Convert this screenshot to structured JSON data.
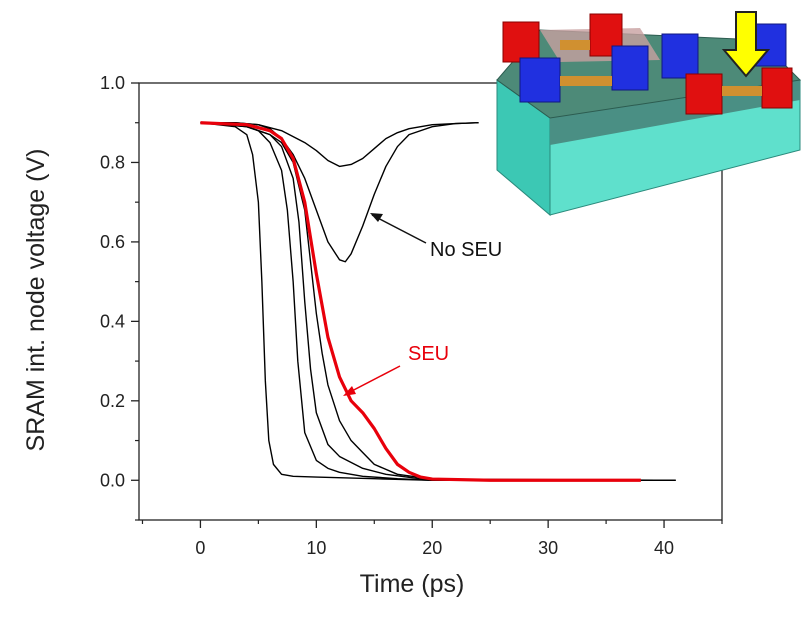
{
  "chart_data": {
    "type": "line",
    "xlabel": "Time (ps)",
    "ylabel": "SRAM int. node voltage (V)",
    "annotations": [
      "No SEU",
      "SEU"
    ],
    "xlim": [
      -5.3,
      45
    ],
    "ylim": [
      -0.1,
      1.0
    ],
    "xticks": [
      0,
      10,
      20,
      30,
      40
    ],
    "xminor_ticks": [
      -5,
      5,
      15,
      25,
      35,
      45
    ],
    "yticks": [
      {
        "value": 0,
        "label": "0.0"
      },
      {
        "value": 0.2,
        "label": "0.2"
      },
      {
        "value": 0.4,
        "label": "0.4"
      },
      {
        "value": 0.6,
        "label": "0.6"
      },
      {
        "value": 0.8,
        "label": "0.8"
      },
      {
        "value": 1.0,
        "label": "1.0"
      }
    ],
    "yminor_ticks": [
      -0.1,
      0.1,
      0.3,
      0.5,
      0.7,
      0.9
    ],
    "series": [
      {
        "color": "#000000",
        "x": [
          0,
          3,
          5,
          7,
          9,
          10,
          11,
          12,
          13,
          14,
          15,
          16,
          17,
          18,
          20,
          22,
          24
        ],
        "values": [
          0.9,
          0.9,
          0.895,
          0.88,
          0.85,
          0.83,
          0.805,
          0.79,
          0.795,
          0.81,
          0.835,
          0.86,
          0.875,
          0.885,
          0.895,
          0.898,
          0.9
        ]
      },
      {
        "color": "#000000",
        "x": [
          0,
          3,
          5,
          6,
          7,
          8,
          9,
          10,
          11,
          12,
          12.5,
          13,
          14,
          15,
          16,
          17,
          18,
          20,
          22,
          24
        ],
        "values": [
          0.9,
          0.9,
          0.895,
          0.885,
          0.86,
          0.82,
          0.76,
          0.68,
          0.6,
          0.555,
          0.55,
          0.57,
          0.64,
          0.72,
          0.79,
          0.84,
          0.87,
          0.89,
          0.898,
          0.9
        ]
      },
      {
        "color": "#000000",
        "x": [
          0,
          3,
          4,
          4.5,
          5,
          5.3,
          5.6,
          5.9,
          6.3,
          7,
          8,
          10,
          15,
          20,
          41
        ],
        "values": [
          0.9,
          0.89,
          0.87,
          0.82,
          0.7,
          0.5,
          0.25,
          0.1,
          0.04,
          0.015,
          0.01,
          0.008,
          0.004,
          0,
          0
        ]
      },
      {
        "color": "#000000",
        "x": [
          0,
          3,
          5,
          6,
          7,
          7.5,
          8,
          8.4,
          9,
          10,
          11,
          12,
          14,
          17,
          20,
          41
        ],
        "values": [
          0.9,
          0.9,
          0.88,
          0.85,
          0.78,
          0.68,
          0.5,
          0.3,
          0.12,
          0.05,
          0.03,
          0.02,
          0.01,
          0.004,
          0,
          0
        ]
      },
      {
        "color": "#000000",
        "x": [
          0,
          4,
          6,
          7,
          8,
          8.5,
          9,
          9.5,
          10,
          11,
          12,
          14,
          16,
          20,
          41
        ],
        "values": [
          0.9,
          0.89,
          0.87,
          0.84,
          0.76,
          0.65,
          0.45,
          0.28,
          0.17,
          0.09,
          0.06,
          0.03,
          0.015,
          0,
          0
        ]
      },
      {
        "color": "#000000",
        "x": [
          0,
          4,
          6,
          7,
          8,
          9,
          9.5,
          10,
          10.5,
          11,
          12,
          13,
          14,
          15,
          17,
          20,
          41
        ],
        "values": [
          0.9,
          0.89,
          0.87,
          0.85,
          0.8,
          0.68,
          0.55,
          0.42,
          0.32,
          0.24,
          0.15,
          0.1,
          0.07,
          0.04,
          0.015,
          0.003,
          0
        ]
      },
      {
        "color": "#e8000b",
        "x": [
          0,
          4,
          6,
          7,
          8,
          9,
          10,
          11,
          12,
          13,
          14,
          15,
          16,
          17,
          18,
          19,
          20,
          25,
          38
        ],
        "values": [
          0.9,
          0.895,
          0.88,
          0.86,
          0.81,
          0.7,
          0.52,
          0.36,
          0.26,
          0.2,
          0.17,
          0.13,
          0.08,
          0.04,
          0.02,
          0.008,
          0.003,
          0,
          0
        ]
      }
    ]
  }
}
